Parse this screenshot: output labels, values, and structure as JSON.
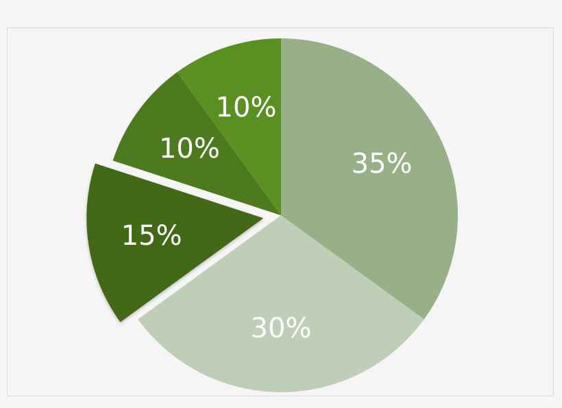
{
  "chart_data": {
    "type": "pie",
    "start_angle_deg": 0,
    "direction": "clockwise",
    "slices": [
      {
        "label": "35%",
        "value": 35,
        "color": "#97b087",
        "exploded": false
      },
      {
        "label": "30%",
        "value": 30,
        "color": "#bfcfb7",
        "exploded": false
      },
      {
        "label": "15%",
        "value": 15,
        "color": "#426918",
        "exploded": true
      },
      {
        "label": "10%",
        "value": 10,
        "color": "#4c7a1d",
        "exploded": false
      },
      {
        "label": "10%",
        "value": 10,
        "color": "#5a8f22",
        "exploded": false
      }
    ],
    "title": "",
    "legend": "none"
  }
}
